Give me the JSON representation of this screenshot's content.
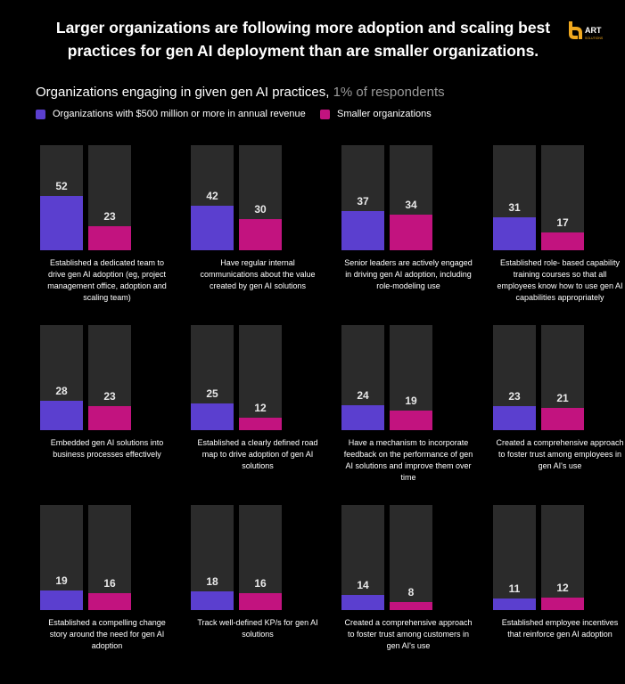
{
  "headline": "Larger organizations are following more adoption and scaling best practices for gen AI deployment than are smaller organizations.",
  "logo": {
    "text": "ART",
    "subtext": "SOLUTIONS"
  },
  "chart_title": "Organizations engaging in given gen AI practices,",
  "chart_title_note": "1% of respondents",
  "colors": {
    "large": "#5b3fcf",
    "small": "#c2137f",
    "track": "#2b2b2b",
    "background": "#000000",
    "logo": "#f0a81e"
  },
  "legend": [
    {
      "label": "Organizations with $500 million or more in annual revenue",
      "color": "#5b3fcf"
    },
    {
      "label": "Smaller organizations",
      "color": "#c2137f"
    }
  ],
  "chart_data": {
    "type": "bar",
    "ylim": [
      0,
      100
    ],
    "series_labels": [
      "Organizations with $500 million or more in annual revenue",
      "Smaller organizations"
    ],
    "panels": [
      {
        "label": "Established a dedicated team to drive gen AI adoption (eg, project management office, adoption and scaling team)",
        "large": 52,
        "small": 23
      },
      {
        "label": "Have regular internal communications about the value created by gen AI solutions",
        "large": 42,
        "small": 30
      },
      {
        "label": "Senior leaders are actively engaged in driving gen AI adoption, including role-modeling use",
        "large": 37,
        "small": 34
      },
      {
        "label": "Established role- based capability training courses so that all employees know how to use gen AI capabilities appropriately",
        "large": 31,
        "small": 17
      },
      {
        "label": "Embedded gen AI solutions into business processes effectively",
        "large": 28,
        "small": 23
      },
      {
        "label": "Established a clearly defined road map to drive adoption of gen AI solutions",
        "large": 25,
        "small": 12
      },
      {
        "label": "Have a mechanism to incorporate feedback on the performance of gen AI solutions and improve them over time",
        "large": 24,
        "small": 19
      },
      {
        "label": "Created a comprehensive approach to foster trust among employees in gen AI's use",
        "large": 23,
        "small": 21
      },
      {
        "label": "Established a compelling change story around the need for gen AI adoption",
        "large": 19,
        "small": 16
      },
      {
        "label": "Track well-defined KP/s for gen AI solutions",
        "large": 18,
        "small": 16
      },
      {
        "label": "Created a comprehensive approach to foster trust among customers in gen AI's use",
        "large": 14,
        "small": 8
      },
      {
        "label": "Established employee incentives that reinforce gen AI adoption",
        "large": 11,
        "small": 12
      }
    ]
  }
}
